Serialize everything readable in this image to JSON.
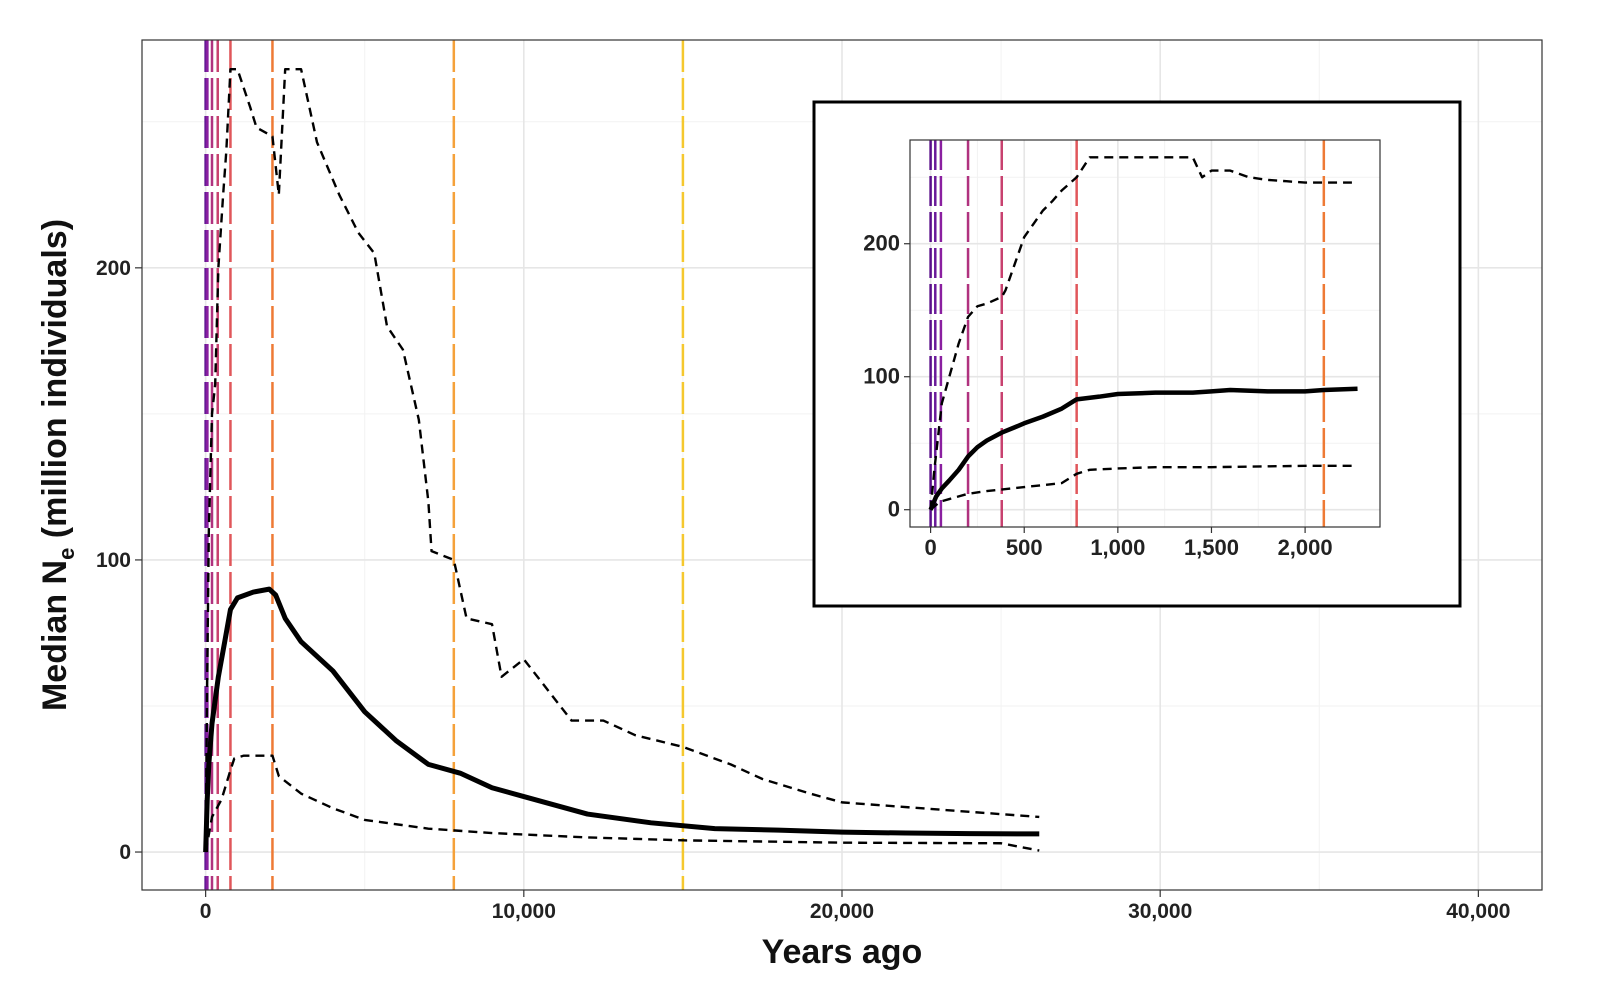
{
  "chart_data": [
    {
      "type": "line",
      "panel": "main",
      "title": "",
      "xlabel": "Years ago",
      "ylabel_main": "Median N",
      "ylabel_sub": "e",
      "ylabel_tail": " (million individuals)",
      "xlim": [
        -2000,
        42000
      ],
      "ylim": [
        -13,
        278
      ],
      "x_ticks": [
        0,
        10000,
        20000,
        30000,
        40000
      ],
      "x_tick_labels": [
        "0",
        "10,000",
        "20,000",
        "30,000",
        "40,000"
      ],
      "y_ticks": [
        0,
        100,
        200
      ],
      "y_tick_labels": [
        "0",
        "100",
        "200"
      ],
      "grid": true,
      "vlines": [
        {
          "x": 0,
          "color": "#5a0f8a"
        },
        {
          "x": 25,
          "color": "#6a1a9a"
        },
        {
          "x": 55,
          "color": "#8a1fa0"
        },
        {
          "x": 200,
          "color": "#b0327f"
        },
        {
          "x": 380,
          "color": "#c8416f"
        },
        {
          "x": 780,
          "color": "#e0565a"
        },
        {
          "x": 2100,
          "color": "#ee7a35"
        },
        {
          "x": 7800,
          "color": "#f5a13a"
        },
        {
          "x": 15000,
          "color": "#f5c82e"
        }
      ],
      "series": [
        {
          "style": "solid",
          "x": [
            0,
            50,
            100,
            200,
            400,
            600,
            780,
            1000,
            1500,
            2000,
            2200,
            2500,
            3000,
            4000,
            5000,
            6000,
            7000,
            8000,
            9000,
            10000,
            12000,
            14000,
            16000,
            18000,
            20000,
            22000,
            24000,
            26200
          ],
          "y": [
            0,
            18,
            30,
            44,
            60,
            72,
            83,
            87,
            89,
            90,
            88,
            80,
            72,
            62,
            48,
            38,
            30,
            27,
            22,
            19,
            13,
            10,
            8,
            7.5,
            6.8,
            6.5,
            6.3,
            6.2
          ]
        },
        {
          "style": "dashed",
          "x": [
            0,
            50,
            100,
            200,
            300,
            400,
            550,
            650,
            780,
            1000,
            1400,
            1600,
            2100,
            2300,
            2500,
            3000,
            3500,
            4200,
            4800,
            5300,
            5700,
            6200,
            6700,
            7000,
            7100,
            7800,
            8200,
            9000,
            9300,
            10000,
            11500,
            12500,
            13500,
            15000,
            16500,
            17500,
            19000,
            20000,
            26200
          ],
          "y": [
            0,
            60,
            110,
            150,
            160,
            200,
            225,
            240,
            268,
            268,
            255,
            248,
            245,
            225,
            268,
            268,
            243,
            225,
            212,
            205,
            180,
            172,
            148,
            120,
            103,
            100,
            80,
            78,
            60,
            66,
            45,
            45,
            40,
            36,
            30,
            25,
            20,
            17,
            12
          ]
        },
        {
          "style": "dashed",
          "x": [
            0,
            200,
            500,
            780,
            900,
            1200,
            2100,
            2300,
            3000,
            4000,
            5000,
            7000,
            9000,
            12000,
            15000,
            20000,
            25000,
            26200
          ],
          "y": [
            0,
            12,
            18,
            28,
            32,
            33,
            33,
            26,
            20,
            15,
            11,
            8,
            6.5,
            5,
            4,
            3.2,
            3,
            0.5
          ]
        }
      ]
    },
    {
      "type": "line",
      "panel": "inset",
      "title": "",
      "xlabel": "",
      "ylabel": "",
      "xlim": [
        -110,
        2400
      ],
      "ylim": [
        -13,
        278
      ],
      "x_ticks": [
        0,
        500,
        1000,
        1500,
        2000
      ],
      "x_tick_labels": [
        "0",
        "500",
        "1,000",
        "1,500",
        "2,000"
      ],
      "y_ticks": [
        0,
        100,
        200
      ],
      "y_tick_labels": [
        "0",
        "100",
        "200"
      ],
      "grid": true,
      "vlines": [
        {
          "x": 0,
          "color": "#5a0f8a"
        },
        {
          "x": 25,
          "color": "#6a1a9a"
        },
        {
          "x": 55,
          "color": "#8a1fa0"
        },
        {
          "x": 200,
          "color": "#b0327f"
        },
        {
          "x": 380,
          "color": "#c8416f"
        },
        {
          "x": 780,
          "color": "#e0565a"
        },
        {
          "x": 2100,
          "color": "#ee7a35"
        }
      ],
      "series": [
        {
          "style": "solid",
          "x": [
            0,
            30,
            60,
            100,
            150,
            200,
            250,
            300,
            380,
            450,
            500,
            600,
            700,
            780,
            900,
            1000,
            1200,
            1400,
            1500,
            1600,
            1800,
            2000,
            2100,
            2280
          ],
          "y": [
            0,
            10,
            16,
            22,
            30,
            40,
            47,
            52,
            58,
            62,
            65,
            70,
            76,
            83,
            85,
            87,
            88,
            88,
            89,
            90,
            89,
            89,
            90,
            91
          ]
        },
        {
          "style": "dashed",
          "x": [
            0,
            20,
            40,
            60,
            100,
            150,
            200,
            250,
            300,
            380,
            400,
            450,
            500,
            550,
            600,
            650,
            700,
            780,
            850,
            1000,
            1200,
            1400,
            1450,
            1500,
            1600,
            1700,
            1800,
            1900,
            2000,
            2100,
            2250
          ],
          "y": [
            0,
            30,
            55,
            80,
            100,
            125,
            145,
            153,
            155,
            160,
            165,
            185,
            205,
            215,
            225,
            232,
            240,
            250,
            265,
            265,
            265,
            265,
            250,
            255,
            255,
            250,
            248,
            247,
            246,
            246,
            246
          ]
        },
        {
          "style": "dashed",
          "x": [
            0,
            50,
            100,
            200,
            300,
            500,
            700,
            780,
            850,
            1000,
            1200,
            1500,
            2000,
            2250
          ],
          "y": [
            0,
            6,
            8,
            12,
            14,
            17,
            20,
            27,
            30,
            31,
            32,
            32,
            33,
            33
          ]
        }
      ]
    }
  ]
}
